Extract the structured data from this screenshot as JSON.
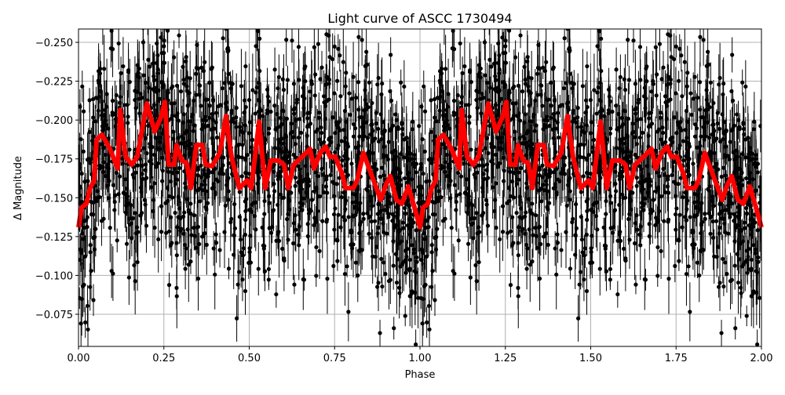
{
  "chart_data": {
    "type": "scatter",
    "title": "Light curve of ASCC 1730494",
    "xlabel": "Phase",
    "ylabel": "Δ Magnitude",
    "xlim": [
      0.0,
      2.0
    ],
    "ylim": [
      -0.0543,
      -0.2586
    ],
    "y_inverted": true,
    "grid": true,
    "xticks": [
      "0.00",
      "0.25",
      "0.50",
      "0.75",
      "1.00",
      "1.25",
      "1.50",
      "1.75",
      "2.00"
    ],
    "yticks": [
      "-0.250",
      "-0.225",
      "-0.200",
      "-0.175",
      "-0.150",
      "-0.125",
      "-0.100",
      "-0.075"
    ],
    "colors": {
      "points": "#000000",
      "model": "#ff0000",
      "grid": "#b0b0b0"
    },
    "series": [
      {
        "kind": "errorbar-points",
        "note_visible": "dense black points with vertical error bars, phase-folded, repeated over 0-2"
      },
      {
        "kind": "line",
        "repeat_period": 1.0,
        "x": [
          0,
          0.009,
          0.023,
          0.034,
          0.046,
          0.053,
          0.069,
          0.092,
          0.115,
          0.122,
          0.138,
          0.156,
          0.172,
          0.2,
          0.223,
          0.241,
          0.253,
          0.264,
          0.28,
          0.287,
          0.303,
          0.317,
          0.329,
          0.345,
          0.363,
          0.372,
          0.391,
          0.414,
          0.432,
          0.448,
          0.471,
          0.494,
          0.506,
          0.529,
          0.547,
          0.563,
          0.586,
          0.602,
          0.614,
          0.63,
          0.655,
          0.678,
          0.69,
          0.708,
          0.724,
          0.736,
          0.752,
          0.772,
          0.782,
          0.805,
          0.816,
          0.834,
          0.851,
          0.864,
          0.885,
          0.901,
          0.913,
          0.931,
          0.947,
          0.966,
          0.982,
          1.0
        ],
        "y": [
          -0.131,
          -0.1436,
          -0.1461,
          -0.1562,
          -0.1612,
          -0.1875,
          -0.1905,
          -0.1814,
          -0.1688,
          -0.2066,
          -0.1764,
          -0.1713,
          -0.1764,
          -0.2107,
          -0.1925,
          -0.2016,
          -0.2117,
          -0.1713,
          -0.1713,
          -0.1839,
          -0.1739,
          -0.1723,
          -0.1562,
          -0.1839,
          -0.1839,
          -0.1713,
          -0.1703,
          -0.1789,
          -0.2026,
          -0.1764,
          -0.1562,
          -0.1612,
          -0.1562,
          -0.1991,
          -0.1562,
          -0.1739,
          -0.1739,
          -0.1713,
          -0.1562,
          -0.1713,
          -0.1764,
          -0.1814,
          -0.1688,
          -0.1789,
          -0.1829,
          -0.1764,
          -0.1764,
          -0.1653,
          -0.1562,
          -0.1562,
          -0.1612,
          -0.1789,
          -0.1688,
          -0.1612,
          -0.1486,
          -0.1587,
          -0.1638,
          -0.1486,
          -0.1461,
          -0.1572,
          -0.1451,
          -0.131
        ]
      }
    ]
  }
}
